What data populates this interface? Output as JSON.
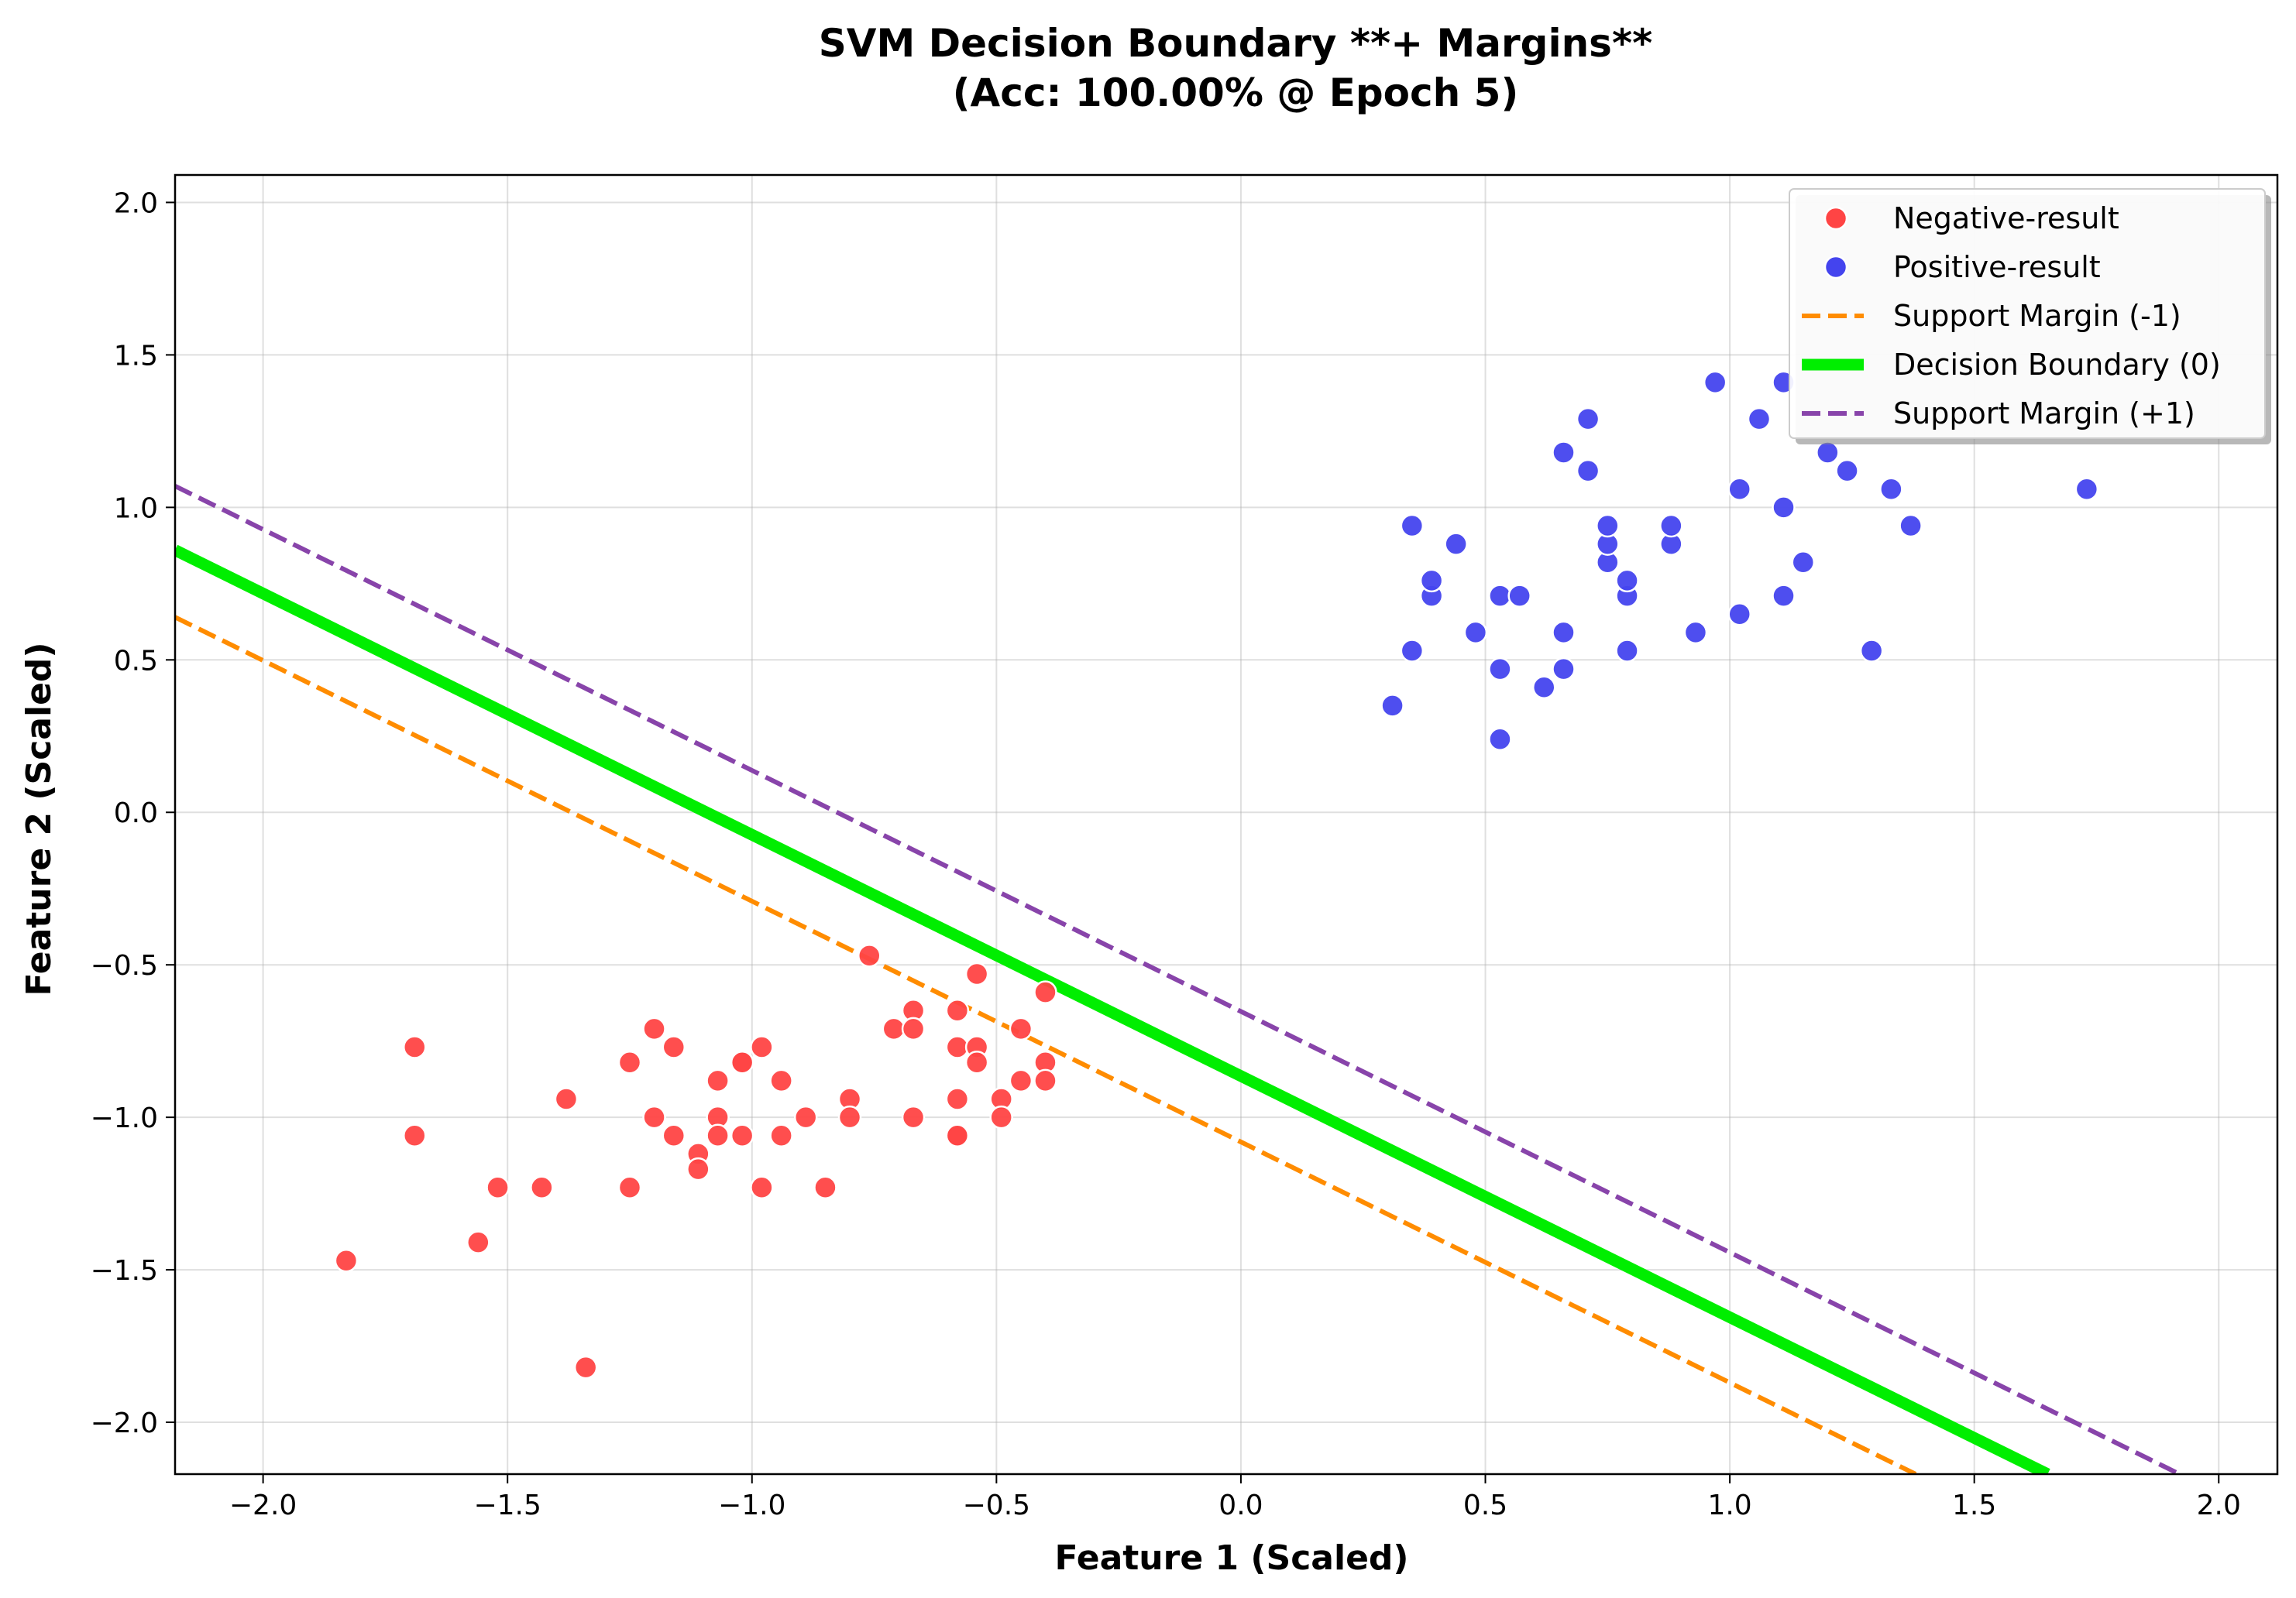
{
  "chart_data": {
    "type": "scatter",
    "title_line1": "SVM Decision Boundary **+ Margins**",
    "title_line2": "(Acc: 100.00% @ Epoch 5)",
    "xlabel": "Feature 1 (Scaled)",
    "ylabel": "Feature 2 (Scaled)",
    "xlim": [
      -2.18,
      2.12
    ],
    "ylim": [
      -2.17,
      2.09
    ],
    "xticks": [
      -2.0,
      -1.5,
      -1.0,
      -0.5,
      0.0,
      0.5,
      1.0,
      1.5,
      2.0
    ],
    "yticks": [
      -2.0,
      -1.5,
      -1.0,
      -0.5,
      0.0,
      0.5,
      1.0,
      1.5,
      2.0
    ],
    "xtick_labels": [
      "−2.0",
      "−1.5",
      "−1.0",
      "−0.5",
      "0.0",
      "0.5",
      "1.0",
      "1.5",
      "2.0"
    ],
    "ytick_labels": [
      "−2.0",
      "−1.5",
      "−1.0",
      "−0.5",
      "0.0",
      "0.5",
      "1.0",
      "1.5",
      "2.0"
    ],
    "grid": true,
    "legend_position": "top-right",
    "scatter_series": [
      {
        "name": "Negative-result",
        "color": "#ff4444",
        "points": [
          [
            -1.83,
            -1.47
          ],
          [
            -1.69,
            -0.77
          ],
          [
            -1.69,
            -1.06
          ],
          [
            -1.56,
            -1.41
          ],
          [
            -1.52,
            -1.23
          ],
          [
            -1.43,
            -1.23
          ],
          [
            -1.38,
            -0.94
          ],
          [
            -1.34,
            -1.82
          ],
          [
            -1.25,
            -0.82
          ],
          [
            -1.25,
            -1.23
          ],
          [
            -1.2,
            -0.71
          ],
          [
            -1.2,
            -1.0
          ],
          [
            -1.16,
            -0.77
          ],
          [
            -1.16,
            -1.06
          ],
          [
            -1.11,
            -1.12
          ],
          [
            -1.11,
            -1.17
          ],
          [
            -1.07,
            -0.88
          ],
          [
            -1.07,
            -1.0
          ],
          [
            -1.07,
            -1.06
          ],
          [
            -1.02,
            -0.82
          ],
          [
            -1.02,
            -0.82
          ],
          [
            -1.02,
            -1.06
          ],
          [
            -0.98,
            -0.77
          ],
          [
            -0.98,
            -1.23
          ],
          [
            -0.94,
            -0.88
          ],
          [
            -0.94,
            -1.06
          ],
          [
            -0.89,
            -1.0
          ],
          [
            -0.85,
            -1.23
          ],
          [
            -0.8,
            -0.94
          ],
          [
            -0.8,
            -1.0
          ],
          [
            -0.76,
            -0.47
          ],
          [
            -0.71,
            -0.71
          ],
          [
            -0.67,
            -0.65
          ],
          [
            -0.67,
            -0.71
          ],
          [
            -0.67,
            -1.0
          ],
          [
            -0.58,
            -0.65
          ],
          [
            -0.58,
            -0.77
          ],
          [
            -0.58,
            -0.94
          ],
          [
            -0.58,
            -1.06
          ],
          [
            -0.58,
            -1.06
          ],
          [
            -0.54,
            -0.53
          ],
          [
            -0.54,
            -0.77
          ],
          [
            -0.54,
            -0.82
          ],
          [
            -0.49,
            -0.94
          ],
          [
            -0.49,
            -1.0
          ],
          [
            -0.45,
            -0.71
          ],
          [
            -0.45,
            -0.88
          ],
          [
            -0.4,
            -0.59
          ],
          [
            -0.4,
            -0.82
          ],
          [
            -0.4,
            -0.88
          ]
        ]
      },
      {
        "name": "Positive-result",
        "color": "#4444ee",
        "points": [
          [
            0.31,
            0.35
          ],
          [
            0.35,
            0.94
          ],
          [
            0.35,
            0.53
          ],
          [
            0.39,
            0.71
          ],
          [
            0.39,
            0.76
          ],
          [
            0.44,
            0.88
          ],
          [
            0.48,
            0.59
          ],
          [
            0.53,
            0.24
          ],
          [
            0.53,
            0.47
          ],
          [
            0.53,
            0.71
          ],
          [
            0.57,
            0.71
          ],
          [
            0.62,
            0.41
          ],
          [
            0.66,
            0.47
          ],
          [
            0.66,
            0.59
          ],
          [
            0.66,
            1.18
          ],
          [
            0.71,
            1.12
          ],
          [
            0.71,
            1.29
          ],
          [
            0.75,
            0.82
          ],
          [
            0.75,
            0.88
          ],
          [
            0.75,
            0.94
          ],
          [
            0.79,
            0.53
          ],
          [
            0.79,
            0.71
          ],
          [
            0.79,
            0.76
          ],
          [
            0.88,
            0.88
          ],
          [
            0.88,
            0.94
          ],
          [
            0.93,
            0.59
          ],
          [
            0.97,
            1.41
          ],
          [
            1.02,
            0.65
          ],
          [
            1.02,
            1.06
          ],
          [
            1.06,
            1.29
          ],
          [
            1.11,
            0.71
          ],
          [
            1.11,
            1.0
          ],
          [
            1.11,
            1.41
          ],
          [
            1.15,
            0.82
          ],
          [
            1.2,
            1.18
          ],
          [
            1.24,
            1.12
          ],
          [
            1.29,
            0.53
          ],
          [
            1.33,
            1.06
          ],
          [
            1.37,
            0.94
          ],
          [
            1.73,
            1.06
          ]
        ]
      }
    ],
    "line_series": [
      {
        "name": "Support Margin (-1)",
        "color": "#ff8c00",
        "dash": true,
        "x": [
          -2.18,
          1.38
        ],
        "y": [
          0.64,
          -2.17
        ]
      },
      {
        "name": "Decision Boundary (0)",
        "color": "#00ee00",
        "dash": false,
        "x": [
          -2.18,
          1.65
        ],
        "y": [
          0.86,
          -2.17
        ]
      },
      {
        "name": "Support Margin (+1)",
        "color": "#8844aa",
        "dash": true,
        "x": [
          -2.18,
          1.92
        ],
        "y": [
          1.07,
          -2.17
        ]
      }
    ]
  }
}
